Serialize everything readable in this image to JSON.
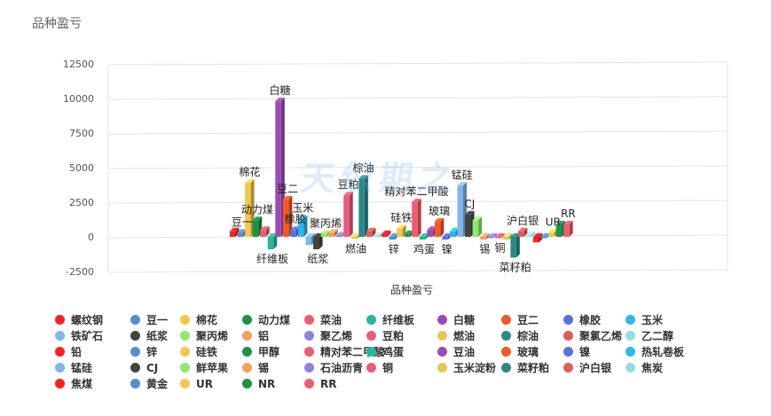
{
  "page": {
    "title": "品种盈亏"
  },
  "watermark": "天织期之",
  "chart_data": {
    "type": "bar",
    "title": "品种盈亏",
    "xlabel": "品种盈亏",
    "ylabel": "",
    "ylim": [
      -2500,
      12500
    ],
    "yticks": [
      -2500,
      0,
      2500,
      5000,
      7500,
      10000,
      12500
    ],
    "ytick_labels": [
      "-2500",
      "0",
      "2500",
      "5000",
      "7500",
      "10000",
      "12500"
    ],
    "grid": true,
    "legend": "bottom",
    "series": [
      {
        "name": "螺纹钢",
        "value": 400,
        "label": "",
        "color": "#ff1f1f"
      },
      {
        "name": "豆一",
        "value": 300,
        "label": "豆一",
        "color": "#4f8fd6"
      },
      {
        "name": "棉花",
        "value": 3900,
        "label": "棉花",
        "color": "#f4c64a"
      },
      {
        "name": "动力煤",
        "value": 1200,
        "label": "动力煤",
        "color": "#1a9444"
      },
      {
        "name": "菜油",
        "value": 500,
        "label": "",
        "color": "#f25a6e"
      },
      {
        "name": "纤维板",
        "value": -900,
        "label": "纤维板",
        "color": "#26b89a"
      },
      {
        "name": "白糖",
        "value": 9800,
        "label": "白糖",
        "color": "#9a4bb8"
      },
      {
        "name": "豆二",
        "value": 2700,
        "label": "豆二",
        "color": "#f25a1f"
      },
      {
        "name": "橡胶",
        "value": 500,
        "label": "橡胶",
        "color": "#5b6ee0"
      },
      {
        "name": "玉米",
        "value": 1300,
        "label": "玉米",
        "color": "#2eb7ea"
      },
      {
        "name": "铁矿石",
        "value": -600,
        "label": "",
        "color": "#7fb7e8"
      },
      {
        "name": "纸浆",
        "value": -900,
        "label": "纸浆",
        "color": "#444444"
      },
      {
        "name": "聚丙烯",
        "value": 200,
        "label": "聚丙烯",
        "color": "#8ee86b"
      },
      {
        "name": "铝",
        "value": 300,
        "label": "",
        "color": "#f4a05a"
      },
      {
        "name": "聚乙烯",
        "value": 100,
        "label": "",
        "color": "#8a84e0"
      },
      {
        "name": "豆粕",
        "value": 3000,
        "label": "豆粕",
        "color": "#ec5b7d"
      },
      {
        "name": "燃油",
        "value": -150,
        "label": "燃油",
        "color": "#e3c94e"
      },
      {
        "name": "棕油",
        "value": 4200,
        "label": "棕油",
        "color": "#2a8a8a"
      },
      {
        "name": "聚氯乙烯",
        "value": 400,
        "label": "",
        "color": "#e45a5a"
      },
      {
        "name": "乙二醇",
        "value": 100,
        "label": "",
        "color": "#91e0dc"
      },
      {
        "name": "铅",
        "value": 200,
        "label": "",
        "color": "#ff1f1f"
      },
      {
        "name": "锌",
        "value": -200,
        "label": "锌",
        "color": "#4f8fd6"
      },
      {
        "name": "硅铁",
        "value": 600,
        "label": "硅铁",
        "color": "#f4c64a"
      },
      {
        "name": "甲醇",
        "value": 200,
        "label": "",
        "color": "#1a9444"
      },
      {
        "name": "精对苯二甲酸",
        "value": 2500,
        "label": "精对苯二甲酸",
        "color": "#f25a6e"
      },
      {
        "name": "鸡蛋",
        "value": -200,
        "label": "鸡蛋",
        "color": "#26b89a"
      },
      {
        "name": "豆油",
        "value": 500,
        "label": "",
        "color": "#9a4bb8"
      },
      {
        "name": "玻璃",
        "value": 1100,
        "label": "玻璃",
        "color": "#f25a1f"
      },
      {
        "name": "镍",
        "value": -200,
        "label": "镍",
        "color": "#5b6ee0"
      },
      {
        "name": "热轧卷板",
        "value": 400,
        "label": "",
        "color": "#2eb7ea"
      },
      {
        "name": "锰硅",
        "value": 3700,
        "label": "锰硅",
        "color": "#7fb7e8"
      },
      {
        "name": "CJ",
        "value": 1600,
        "label": "CJ",
        "color": "#444444"
      },
      {
        "name": "鲜苹果",
        "value": 1200,
        "label": "",
        "color": "#8ee86b"
      },
      {
        "name": "锡",
        "value": -200,
        "label": "锡",
        "color": "#f4a05a"
      },
      {
        "name": "石油沥青",
        "value": -100,
        "label": "",
        "color": "#8a84e0"
      },
      {
        "name": "铜",
        "value": -100,
        "label": "铜",
        "color": "#ec5b7d"
      },
      {
        "name": "玉米淀粉",
        "value": -200,
        "label": "",
        "color": "#e3c94e"
      },
      {
        "name": "菜籽粕",
        "value": -1500,
        "label": "菜籽粕",
        "color": "#2a8a8a"
      },
      {
        "name": "沪白银",
        "value": 400,
        "label": "沪白银",
        "color": "#e45a5a"
      },
      {
        "name": "焦炭",
        "value": 100,
        "label": "",
        "color": "#91e0dc"
      },
      {
        "name": "焦煤",
        "value": -400,
        "label": "",
        "color": "#ff1f1f"
      },
      {
        "name": "黄金",
        "value": -100,
        "label": "",
        "color": "#4f8fd6"
      },
      {
        "name": "UR",
        "value": 300,
        "label": "UR",
        "color": "#f4c64a"
      },
      {
        "name": "NR",
        "value": 900,
        "label": "",
        "color": "#1a9444"
      },
      {
        "name": "RR",
        "value": 900,
        "label": "RR",
        "color": "#f25a6e"
      }
    ]
  }
}
